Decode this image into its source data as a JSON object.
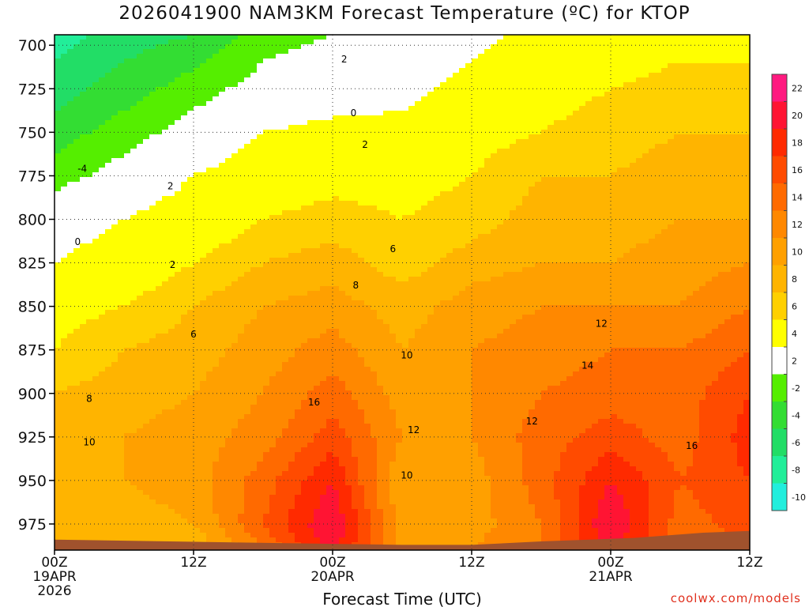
{
  "chart_data": {
    "type": "heatmap",
    "title": "2026041900 NAM3KM Forecast Temperature (ºC) for KTOP",
    "xlabel": "Forecast Time (UTC)",
    "ylabel": "",
    "xlim": [
      0,
      60
    ],
    "ylim": [
      990,
      694
    ],
    "y_ticks": [
      700,
      725,
      750,
      775,
      800,
      825,
      850,
      875,
      900,
      925,
      950,
      975
    ],
    "x_ticks": [
      {
        "value": 0,
        "lines": [
          "00Z",
          "19APR",
          "2026"
        ]
      },
      {
        "value": 12,
        "lines": [
          "12Z"
        ]
      },
      {
        "value": 24,
        "lines": [
          "00Z",
          "20APR"
        ]
      },
      {
        "value": 36,
        "lines": [
          "12Z"
        ]
      },
      {
        "value": 48,
        "lines": [
          "00Z",
          "21APR"
        ]
      },
      {
        "value": 60,
        "lines": [
          "12Z"
        ]
      }
    ],
    "colorbar": {
      "labels": [
        "22",
        "20",
        "18",
        "16",
        "14",
        "12",
        "10",
        "8",
        "6",
        "4",
        "2",
        "-2",
        "-4",
        "-6",
        "-8",
        "-10"
      ],
      "colors": [
        "#ff1a80",
        "#ff1433",
        "#ff2a00",
        "#ff4b00",
        "#ff6a00",
        "#ff8800",
        "#ffa000",
        "#ffb400",
        "#ffd000",
        "#ffff00",
        "#ffffff",
        "#55ee00",
        "#33dd33",
        "#22dd66",
        "#22ee99",
        "#22eedd"
      ]
    },
    "freezing_color": "#b0207a",
    "ground_color": "#a0522d",
    "temperature_field": {
      "times_hours": [
        0,
        6,
        12,
        18,
        24,
        30,
        36,
        42,
        48,
        54,
        60
      ],
      "pressure_levels_hpa": [
        990,
        975,
        950,
        925,
        900,
        875,
        850,
        825,
        800,
        775,
        750,
        725,
        694
      ],
      "rows_by_level": [
        [
          8,
          9,
          8,
          14,
          21,
          11,
          12,
          14,
          21,
          14,
          16
        ],
        [
          9,
          9,
          10,
          16,
          22,
          11,
          11,
          14,
          22,
          15,
          17
        ],
        [
          10,
          10,
          11,
          15,
          20,
          10,
          11,
          15,
          20,
          16,
          18
        ],
        [
          9,
          10,
          11,
          13,
          17,
          12,
          12,
          15,
          17,
          15,
          19
        ],
        [
          8,
          9,
          10,
          12,
          15,
          11,
          12,
          14,
          15,
          15,
          18
        ],
        [
          6,
          8,
          9,
          11,
          13,
          10,
          12,
          13,
          14,
          14,
          16
        ],
        [
          5,
          6,
          8,
          10,
          11,
          9,
          11,
          12,
          12,
          12,
          14
        ],
        [
          2,
          4,
          6,
          8,
          9,
          7,
          9,
          10,
          10,
          11,
          12
        ],
        [
          0,
          2,
          4,
          6,
          7,
          6,
          7,
          9,
          9,
          10,
          10
        ],
        [
          -3,
          -1,
          2,
          4,
          5,
          5,
          6,
          8,
          8,
          9,
          9
        ],
        [
          -5,
          -3,
          -1,
          2,
          3,
          3,
          5,
          6,
          7,
          8,
          8
        ],
        [
          -7,
          -5,
          -3,
          -1,
          0,
          1,
          3,
          5,
          6,
          7,
          7
        ],
        [
          -9,
          -7,
          -6,
          -3,
          -2,
          -1,
          1,
          3,
          4,
          5,
          5
        ]
      ]
    },
    "contour_labels": [
      {
        "text": "0",
        "t": 2.0,
        "p": 813
      },
      {
        "text": "0",
        "t": 25.8,
        "p": 739
      },
      {
        "text": "-4",
        "t": 2.4,
        "p": 771
      },
      {
        "text": "2",
        "t": 10.0,
        "p": 781
      },
      {
        "text": "2",
        "t": 10.2,
        "p": 826
      },
      {
        "text": "2",
        "t": 25.0,
        "p": 708
      },
      {
        "text": "2",
        "t": 26.8,
        "p": 757
      },
      {
        "text": "6",
        "t": 12.0,
        "p": 866
      },
      {
        "text": "6",
        "t": 29.2,
        "p": 817
      },
      {
        "text": "8",
        "t": 3.0,
        "p": 903
      },
      {
        "text": "8",
        "t": 26.0,
        "p": 838
      },
      {
        "text": "10",
        "t": 3.0,
        "p": 928
      },
      {
        "text": "10",
        "t": 30.4,
        "p": 878
      },
      {
        "text": "10",
        "t": 30.4,
        "p": 947
      },
      {
        "text": "12",
        "t": 31.0,
        "p": 921
      },
      {
        "text": "12",
        "t": 41.2,
        "p": 916
      },
      {
        "text": "12",
        "t": 47.2,
        "p": 860
      },
      {
        "text": "14",
        "t": 46.0,
        "p": 884
      },
      {
        "text": "16",
        "t": 22.4,
        "p": 905
      },
      {
        "text": "16",
        "t": 55.0,
        "p": 930
      }
    ]
  },
  "footer": {
    "credit": "coolwx.com/models"
  }
}
